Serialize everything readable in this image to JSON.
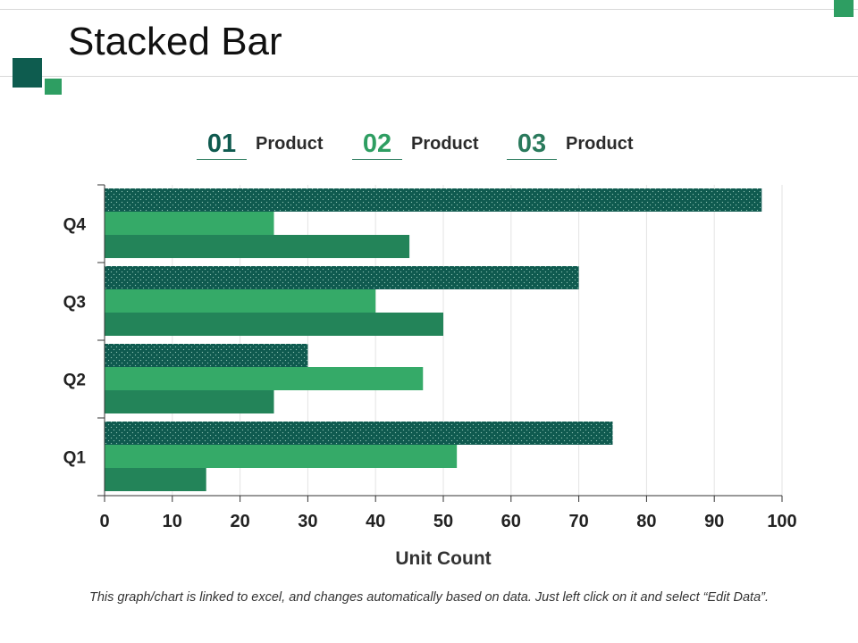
{
  "slide": {
    "title": "Stacked Bar",
    "footnote": "This graph/chart is linked to excel, and changes automatically based on data. Just left click on it and select “Edit Data”."
  },
  "legend": [
    {
      "num": "01",
      "label": "Product",
      "color": "#0f5a4f"
    },
    {
      "num": "02",
      "label": "Product",
      "color": "#2e9e62"
    },
    {
      "num": "03",
      "label": "Product",
      "color": "#2a7a5c"
    }
  ],
  "colors": {
    "series1": "#0f5a4f",
    "series2": "#35aa68",
    "series3": "#238459",
    "deco_dark": "#0e5c4f",
    "deco_light": "#2e9e62",
    "grid": "#e3e3e3",
    "axis": "#333333"
  },
  "chart_data": {
    "type": "bar",
    "orientation": "horizontal",
    "categories": [
      "Q1",
      "Q2",
      "Q3",
      "Q4"
    ],
    "series": [
      {
        "values": [
          75,
          30,
          70,
          97
        ],
        "pattern": "dotted"
      },
      {
        "values": [
          52,
          47,
          40,
          25
        ]
      },
      {
        "values": [
          15,
          25,
          50,
          45
        ]
      }
    ],
    "xlabel": "Unit Count",
    "xlim": [
      0,
      100
    ],
    "xticks": [
      0,
      10,
      20,
      30,
      40,
      50,
      60,
      70,
      80,
      90,
      100
    ],
    "grid": true,
    "legend_position": "top"
  }
}
